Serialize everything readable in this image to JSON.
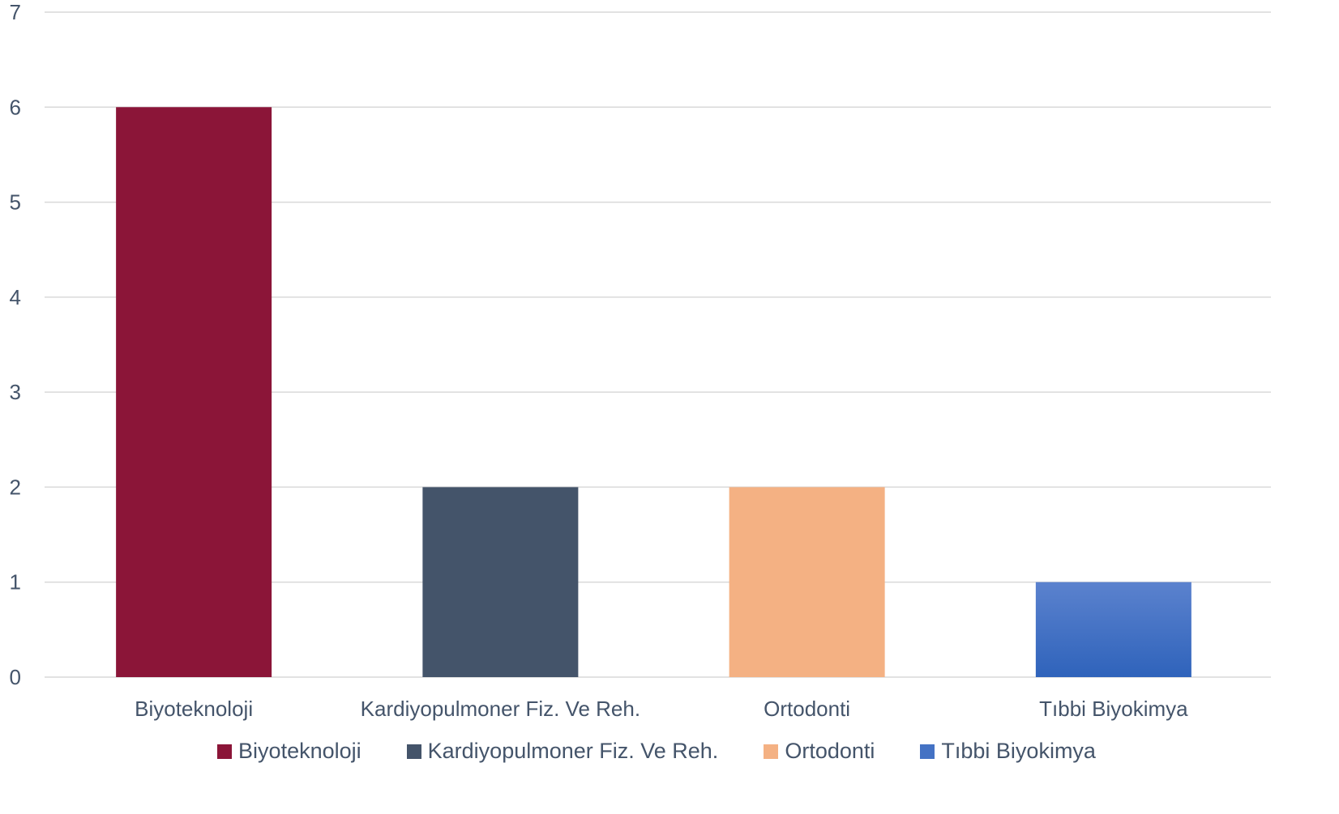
{
  "chart_data": {
    "type": "bar",
    "categories": [
      "Biyoteknoloji",
      "Kardiyopulmoner Fiz. Ve Reh.",
      "Ortodonti",
      "Tıbbi Biyokimya"
    ],
    "values": [
      6,
      2,
      2,
      1
    ],
    "ylim": [
      0,
      7
    ],
    "yticks": [
      0,
      1,
      2,
      3,
      4,
      5,
      6,
      7
    ],
    "ytick_labels": [
      "0",
      "1",
      "2",
      "3",
      "4",
      "5",
      "6",
      "7"
    ],
    "colors": [
      "#8b1538",
      "#44546a",
      "#f4b183",
      "#4472c4"
    ],
    "grid": true,
    "legend_position": "bottom",
    "legend": [
      {
        "label": "Biyoteknoloji",
        "color": "#8b1538"
      },
      {
        "label": "Kardiyopulmoner Fiz. Ve Reh.",
        "color": "#44546a"
      },
      {
        "label": "Ortodonti",
        "color": "#f4b183"
      },
      {
        "label": "Tıbbi Biyokimya",
        "color": "#4472c4"
      }
    ]
  }
}
